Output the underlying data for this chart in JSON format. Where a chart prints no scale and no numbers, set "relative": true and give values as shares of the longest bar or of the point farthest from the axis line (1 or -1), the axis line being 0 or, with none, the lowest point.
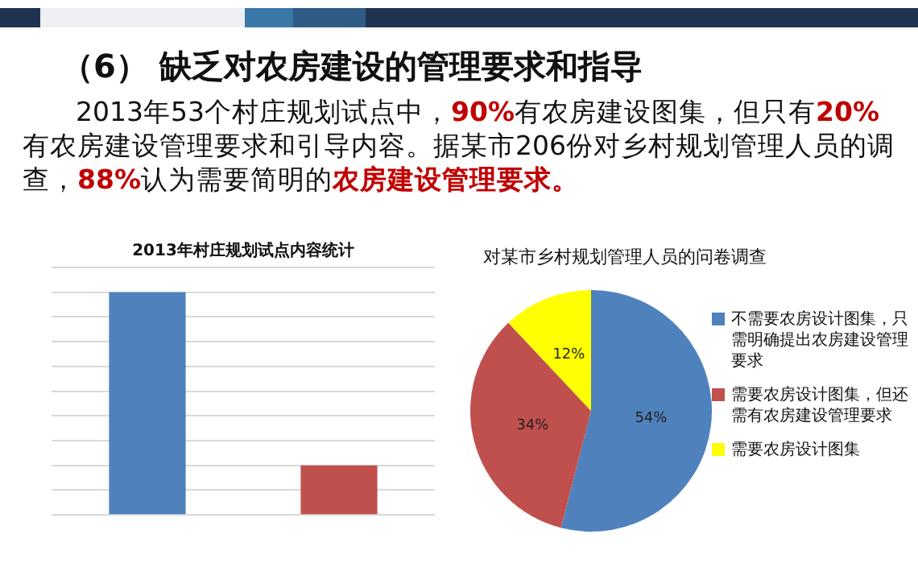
{
  "chart_data": [
    {
      "type": "other",
      "title": "（6） 缺乏对农房建设的管理要求和指导",
      "annotations": [
        "2013年53个村庄规划试点中，",
        "90%",
        "有农房建设图集，但只有",
        "20%",
        "有农房建设管理要求和引导内容。据某市206份对乡村规划管理人员的调查，",
        "88%",
        "认为需要简明的",
        "农房建设管理要求。"
      ]
    },
    {
      "type": "bar",
      "title": "2013年村庄规划试点内容统计",
      "categories": [
        null,
        null
      ],
      "values": [
        1,
        0.222
      ],
      "colors": [
        "#4f81bd",
        "#c0504d"
      ],
      "relative": true,
      "grid": "y",
      "legend": false
    },
    {
      "type": "pie",
      "title": "对某市乡村规划管理人员的问卷调查",
      "categories": [
        "不需要农房设计图集，只需明确提出农房建设管理要求",
        "需要农房设计图集，但还需有农房建设管理要求",
        "需要农房设计图集"
      ],
      "values": [
        54,
        34,
        12
      ],
      "value_labels": [
        "54%",
        "34%",
        "12%"
      ],
      "colors": [
        "#4f81bd",
        "#c0504d",
        "#ffff00"
      ],
      "legend": "right"
    }
  ]
}
